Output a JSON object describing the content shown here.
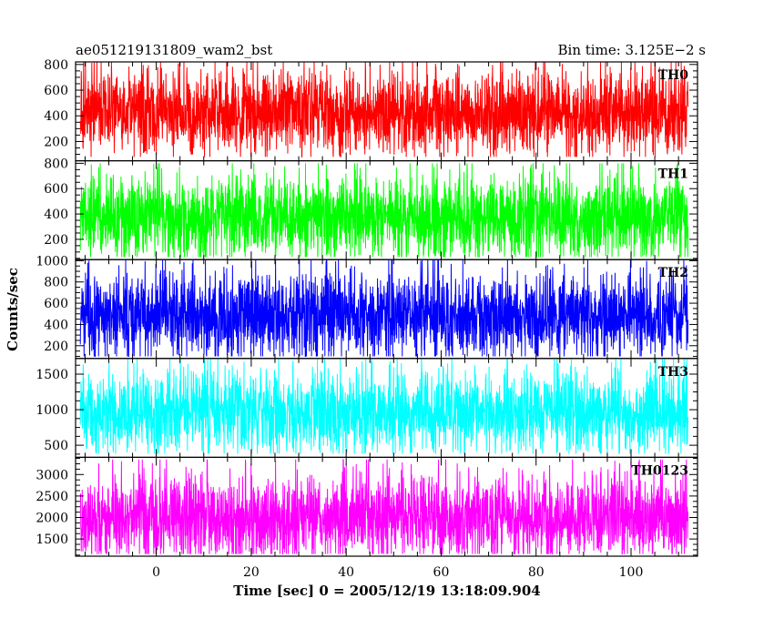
{
  "header": {
    "left_title": "ae051219131809_wam2_bst",
    "right_title": "Bin time: 3.125E−2 s"
  },
  "chart_data": {
    "type": "line",
    "title": "ae051219131809_wam2_bst",
    "subtitle": "Bin time: 3.125E−2 s",
    "xlabel": "Time [sec] 0 = 2005/12/19 13:18:09.904",
    "ylabel": "Counts/sec",
    "xlim": [
      -17,
      114
    ],
    "x_ticks": [
      0,
      20,
      40,
      60,
      80,
      100
    ],
    "x_range_data": [
      -16,
      112
    ],
    "grid": false,
    "panels": [
      {
        "name": "TH0",
        "color": "#ff0000",
        "ylim": [
          50,
          820
        ],
        "y_ticks": [
          200,
          400,
          600,
          800
        ],
        "y_tick_labels": [
          "200",
          "400",
          "600",
          "800"
        ],
        "series": [
          {
            "name": "TH0",
            "mean": 430,
            "min": 80,
            "max": 820
          }
        ]
      },
      {
        "name": "TH1",
        "color": "#00ff00",
        "ylim": [
          40,
          820
        ],
        "y_ticks": [
          200,
          400,
          600,
          800
        ],
        "y_tick_labels": [
          "200",
          "400",
          "600",
          "800"
        ],
        "series": [
          {
            "name": "TH1",
            "mean": 380,
            "min": 60,
            "max": 800
          }
        ]
      },
      {
        "name": "TH2",
        "color": "#0000ff",
        "ylim": [
          80,
          1010
        ],
        "y_ticks": [
          200,
          400,
          600,
          800,
          1000
        ],
        "y_tick_labels": [
          "200",
          "400",
          "600",
          "800",
          "1000"
        ],
        "series": [
          {
            "name": "TH2",
            "mean": 480,
            "min": 100,
            "max": 1010
          }
        ]
      },
      {
        "name": "TH3",
        "color": "#00ffff",
        "ylim": [
          330,
          1720
        ],
        "y_ticks": [
          500,
          1000,
          1500
        ],
        "y_tick_labels": [
          "500",
          "1000",
          "1500"
        ],
        "series": [
          {
            "name": "TH3",
            "mean": 960,
            "min": 380,
            "max": 1720
          }
        ]
      },
      {
        "name": "TH0123",
        "color": "#ff00ff",
        "ylim": [
          1100,
          3400
        ],
        "y_ticks": [
          1500,
          2000,
          2500,
          3000
        ],
        "y_tick_labels": [
          "1500",
          "2000",
          "2500",
          "3000"
        ],
        "series": [
          {
            "name": "TH0123",
            "mean": 2000,
            "min": 1150,
            "max": 3350
          }
        ]
      }
    ]
  }
}
